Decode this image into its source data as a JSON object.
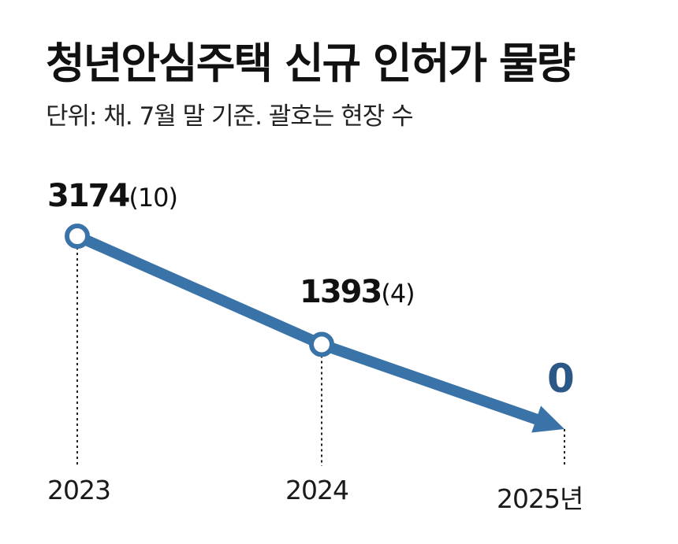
{
  "title": "청년안심주택 신규 인허가 물량",
  "subtitle": "단위: 채. 7월 말 기준.  괄호는 현장 수",
  "colors": {
    "line": "#3a73a8",
    "zero_label": "#2b5887",
    "text": "#111111"
  },
  "chart_data": {
    "type": "line",
    "title": "청년안심주택 신규 인허가 물량",
    "x": [
      "2023",
      "2024",
      "2025년"
    ],
    "series": [
      {
        "values": [
          3174,
          1393,
          0
        ],
        "sites": [
          10,
          4,
          null
        ]
      }
    ],
    "data_labels": [
      {
        "value": "3174",
        "sub": "(10)"
      },
      {
        "value": "1393",
        "sub": "(4)"
      },
      {
        "value": "0",
        "sub": ""
      }
    ],
    "ylim": [
      0,
      3174
    ],
    "grid": false,
    "legend": "none",
    "last_point_marker": "arrow"
  }
}
